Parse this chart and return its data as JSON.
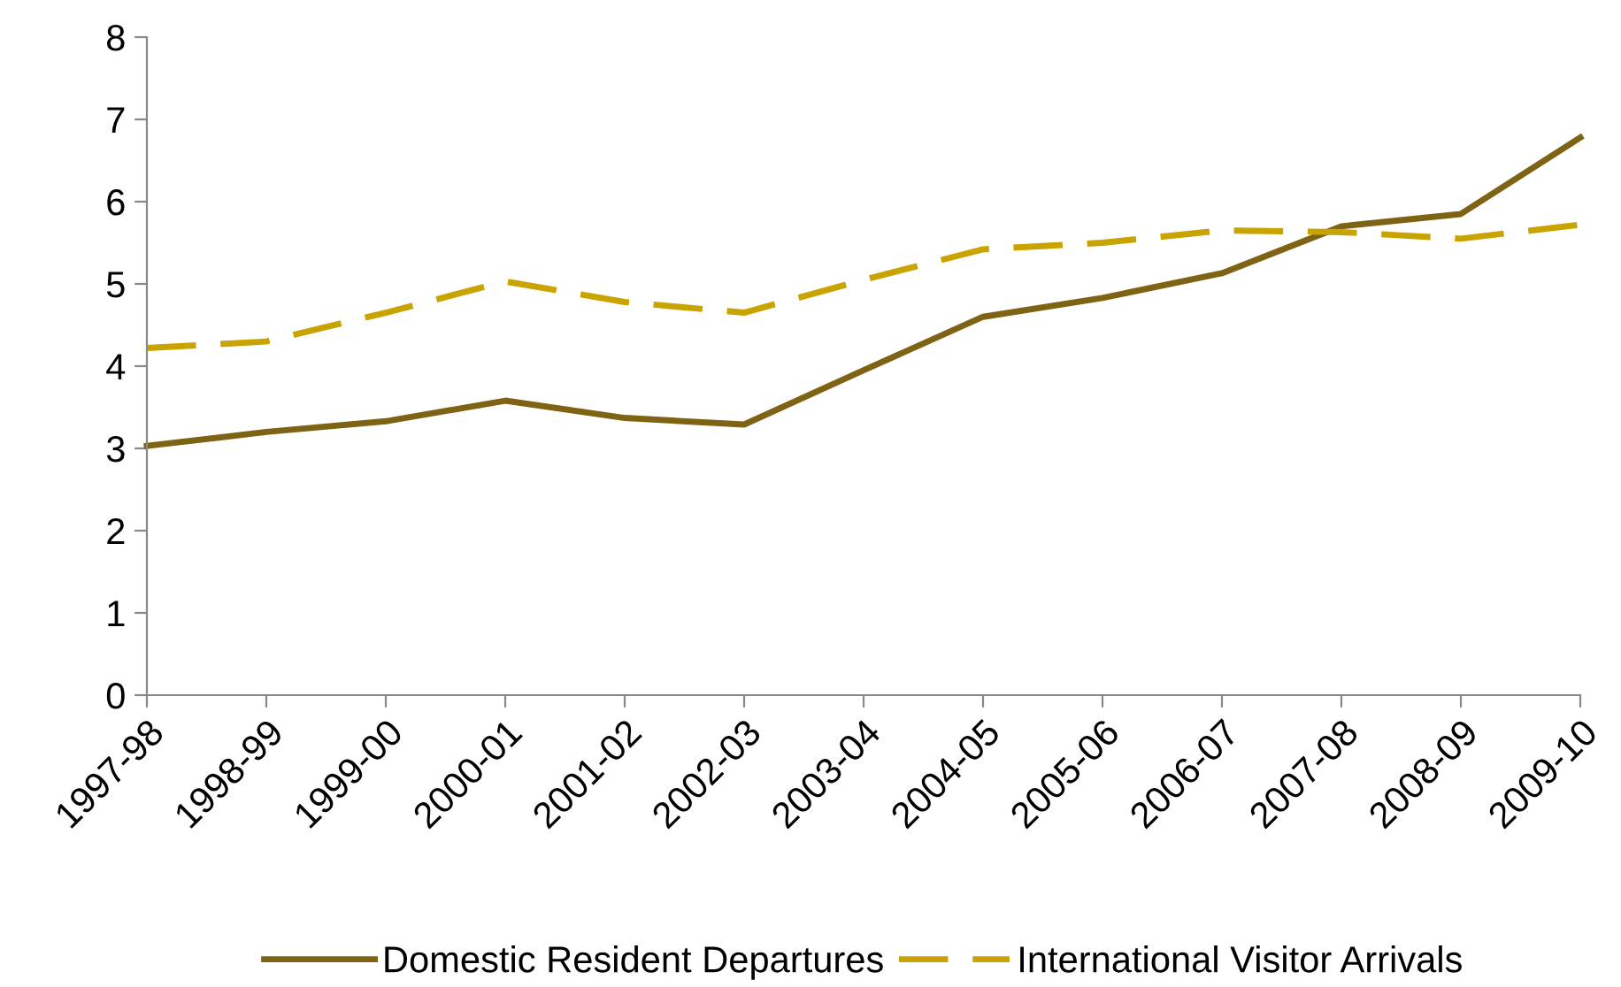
{
  "chart_data": {
    "type": "line",
    "categories": [
      "1997-98",
      "1998-99",
      "1999-00",
      "2000-01",
      "2001-02",
      "2002-03",
      "2003-04",
      "2004-05",
      "2005-06",
      "2006-07",
      "2007-08",
      "2008-09",
      "2009-10"
    ],
    "series": [
      {
        "name": "Domestic Resident Departures",
        "color": "#7f6315",
        "line_style": "solid",
        "values": [
          3.03,
          3.2,
          3.33,
          3.58,
          3.37,
          3.29,
          3.95,
          4.6,
          4.83,
          5.13,
          5.7,
          5.85,
          6.78
        ]
      },
      {
        "name": "International Visitor Arrivals",
        "color": "#c9a300",
        "line_style": "dashed",
        "values": [
          4.22,
          4.3,
          4.65,
          5.03,
          4.78,
          4.65,
          5.05,
          5.42,
          5.5,
          5.65,
          5.63,
          5.55,
          5.72
        ]
      }
    ],
    "ylim": [
      0,
      8
    ],
    "yticks": [
      0,
      1,
      2,
      3,
      4,
      5,
      6,
      7,
      8
    ],
    "grid": false,
    "legend": "bottom",
    "marker": "none"
  }
}
